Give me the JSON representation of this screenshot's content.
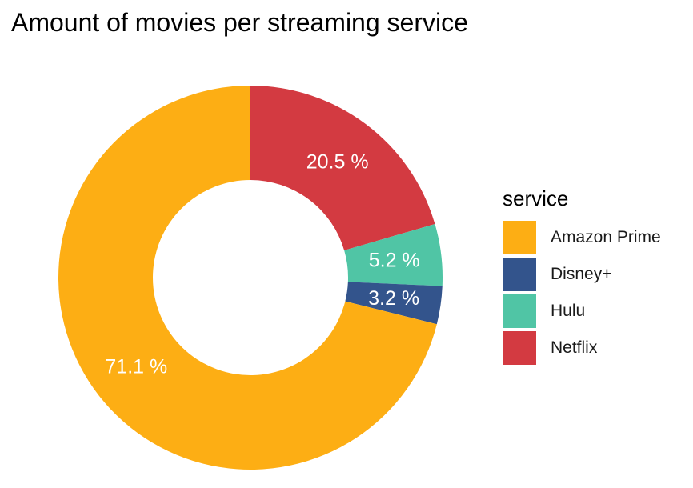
{
  "chart_data": {
    "type": "pie",
    "variant": "donut",
    "title": "Amount of movies per streaming service",
    "legend_title": "service",
    "legend_position": "right",
    "categories": [
      "Amazon Prime",
      "Disney+",
      "Hulu",
      "Netflix"
    ],
    "values": [
      71.1,
      3.2,
      5.2,
      20.5
    ],
    "labels": [
      "71.1 %",
      "3.2 %",
      "5.2 %",
      "20.5 %"
    ],
    "colors": [
      "#FDAE14",
      "#33548C",
      "#50C5A5",
      "#D33A41"
    ]
  }
}
